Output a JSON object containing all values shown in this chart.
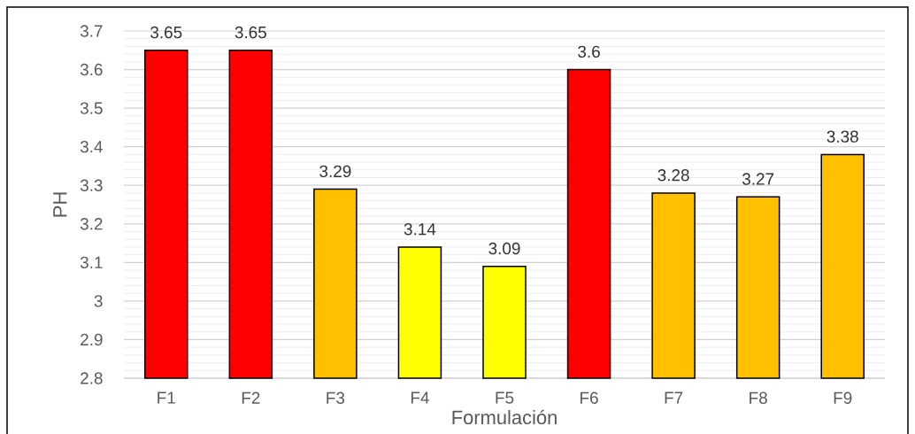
{
  "chart_data": {
    "type": "bar",
    "xlabel": "Formulación",
    "ylabel": "PH",
    "categories": [
      "F1",
      "F2",
      "F3",
      "F4",
      "F5",
      "F6",
      "F7",
      "F8",
      "F9"
    ],
    "values": [
      3.65,
      3.65,
      3.29,
      3.14,
      3.09,
      3.6,
      3.28,
      3.27,
      3.38
    ],
    "colors": [
      "#ff0000",
      "#ff0000",
      "#ffc000",
      "#ffff00",
      "#ffff00",
      "#ff0000",
      "#ffc000",
      "#ffc000",
      "#ffc000"
    ],
    "ylim": [
      2.8,
      3.7
    ],
    "yticks": [
      2.8,
      2.9,
      3,
      3.1,
      3.2,
      3.3,
      3.4,
      3.5,
      3.6,
      3.7
    ],
    "grid": "y",
    "data_labels": true
  }
}
